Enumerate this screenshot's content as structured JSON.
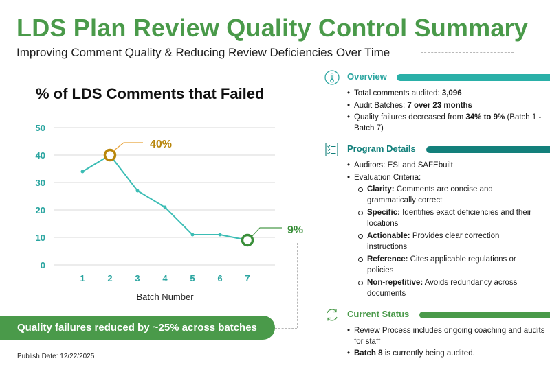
{
  "header": {
    "title": "LDS Plan Review Quality Control Summary",
    "subtitle": "Improving Comment Quality & Reducing Review Deficiencies Over Time"
  },
  "chart_data": {
    "type": "line",
    "title": "% of LDS Comments that Failed",
    "xlabel": "Batch Number",
    "ylabel": "",
    "x": [
      1,
      2,
      3,
      4,
      5,
      6,
      7
    ],
    "series": [
      {
        "values": [
          34,
          40,
          27,
          21,
          11,
          11,
          9
        ]
      }
    ],
    "yticks": [
      0,
      10,
      20,
      30,
      40,
      50
    ],
    "xticks": [
      "1",
      "2",
      "3",
      "4",
      "5",
      "6",
      "7"
    ],
    "ylim": [
      0,
      50
    ],
    "grid": true,
    "annotations": [
      {
        "x": 2,
        "y": 40,
        "text": "40%",
        "color": "#b8860b"
      },
      {
        "x": 7,
        "y": 9,
        "text": "9%",
        "color": "#3a8f3a"
      }
    ],
    "line_color": "#3cbdb5"
  },
  "banner": {
    "text": "Quality failures reduced by ~25% across batches"
  },
  "publish_date": "Publish Date: 12/22/2025",
  "overview": {
    "title": "Overview",
    "icon": "thermometer-icon",
    "items": [
      {
        "label": "Total comments audited: ",
        "value": "3,096",
        "tail": ""
      },
      {
        "label": " Audit Batches: ",
        "value": "7 over 23 months",
        "tail": ""
      },
      {
        "label": "Quality failures decreased from ",
        "value": "34% to 9%",
        "tail": " (Batch 1 - Batch 7)"
      }
    ]
  },
  "program": {
    "title": "Program Details",
    "icon": "checklist-icon",
    "auditors": "Auditors: ESI and SAFEbuilt",
    "criteria_label": "Evaluation Criteria:",
    "criteria": [
      {
        "name": "Clarity:",
        "desc": " Comments are concise and grammatically correct"
      },
      {
        "name": "Specific:",
        "desc": " Identifies exact deficiencies and their locations"
      },
      {
        "name": "Actionable:",
        "desc": " Provides clear correction instructions"
      },
      {
        "name": "Reference:",
        "desc": " Cites applicable regulations or policies"
      },
      {
        "name": "Non-repetitive:",
        "desc": " Avoids redundancy across documents"
      }
    ]
  },
  "status": {
    "title": "Current Status",
    "icon": "cycle-arrows-icon",
    "item1": "Review Process includes ongoing coaching and audits for staff",
    "item2_bold": "Batch 8",
    "item2_rest": " is currently being audited."
  }
}
